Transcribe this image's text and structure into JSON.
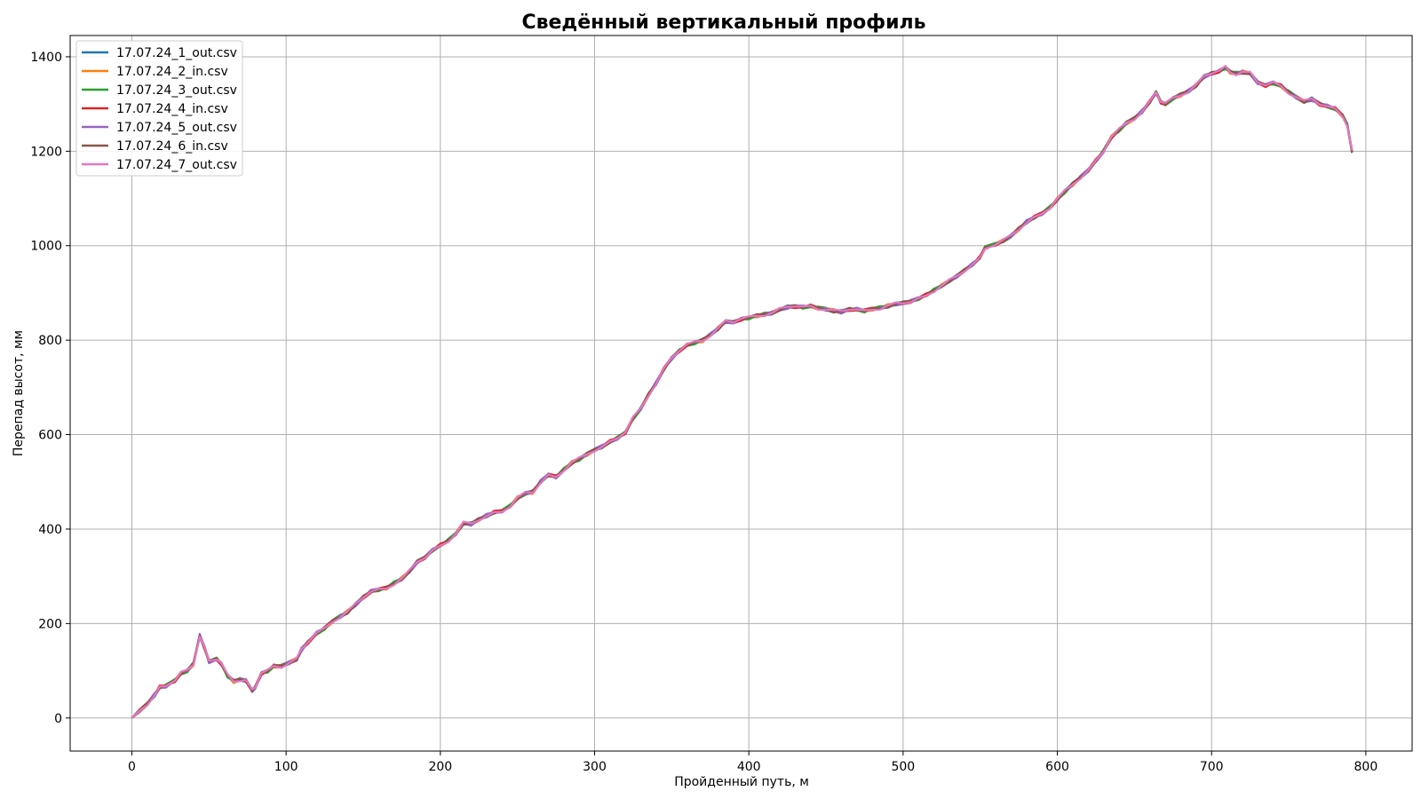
{
  "chart_data": {
    "type": "line",
    "title": "Сведённый вертикальный профиль",
    "xlabel": "Пройденный путь, м",
    "ylabel": "Перепад высот, мм",
    "xlim": [
      -40,
      830
    ],
    "ylim": [
      -70,
      1445
    ],
    "xticks": [
      0,
      100,
      200,
      300,
      400,
      500,
      600,
      700,
      800
    ],
    "yticks": [
      0,
      200,
      400,
      600,
      800,
      1000,
      1200,
      1400
    ],
    "grid": true,
    "legend_position": "upper-left",
    "profile": [
      [
        0,
        0
      ],
      [
        5,
        15
      ],
      [
        10,
        30
      ],
      [
        15,
        50
      ],
      [
        18,
        65
      ],
      [
        22,
        68
      ],
      [
        28,
        80
      ],
      [
        32,
        95
      ],
      [
        36,
        100
      ],
      [
        40,
        115
      ],
      [
        44,
        175
      ],
      [
        47,
        150
      ],
      [
        50,
        120
      ],
      [
        55,
        125
      ],
      [
        58,
        115
      ],
      [
        62,
        90
      ],
      [
        66,
        78
      ],
      [
        70,
        82
      ],
      [
        74,
        80
      ],
      [
        78,
        58
      ],
      [
        80,
        65
      ],
      [
        84,
        95
      ],
      [
        88,
        100
      ],
      [
        92,
        110
      ],
      [
        97,
        110
      ],
      [
        102,
        118
      ],
      [
        107,
        125
      ],
      [
        110,
        145
      ],
      [
        114,
        160
      ],
      [
        120,
        180
      ],
      [
        125,
        190
      ],
      [
        130,
        205
      ],
      [
        135,
        215
      ],
      [
        140,
        225
      ],
      [
        145,
        240
      ],
      [
        150,
        255
      ],
      [
        155,
        268
      ],
      [
        160,
        272
      ],
      [
        165,
        275
      ],
      [
        170,
        285
      ],
      [
        175,
        295
      ],
      [
        180,
        310
      ],
      [
        185,
        330
      ],
      [
        190,
        340
      ],
      [
        195,
        355
      ],
      [
        200,
        365
      ],
      [
        205,
        375
      ],
      [
        210,
        390
      ],
      [
        215,
        412
      ],
      [
        220,
        410
      ],
      [
        225,
        420
      ],
      [
        230,
        428
      ],
      [
        235,
        435
      ],
      [
        240,
        438
      ],
      [
        245,
        448
      ],
      [
        250,
        465
      ],
      [
        255,
        475
      ],
      [
        260,
        478
      ],
      [
        265,
        500
      ],
      [
        270,
        515
      ],
      [
        275,
        510
      ],
      [
        280,
        525
      ],
      [
        285,
        540
      ],
      [
        290,
        548
      ],
      [
        295,
        558
      ],
      [
        300,
        568
      ],
      [
        305,
        575
      ],
      [
        310,
        585
      ],
      [
        315,
        593
      ],
      [
        320,
        605
      ],
      [
        325,
        635
      ],
      [
        330,
        655
      ],
      [
        335,
        685
      ],
      [
        340,
        710
      ],
      [
        345,
        740
      ],
      [
        350,
        762
      ],
      [
        355,
        778
      ],
      [
        360,
        790
      ],
      [
        365,
        795
      ],
      [
        370,
        800
      ],
      [
        375,
        812
      ],
      [
        380,
        825
      ],
      [
        385,
        840
      ],
      [
        390,
        838
      ],
      [
        395,
        845
      ],
      [
        400,
        848
      ],
      [
        405,
        852
      ],
      [
        410,
        855
      ],
      [
        415,
        858
      ],
      [
        420,
        865
      ],
      [
        425,
        870
      ],
      [
        430,
        872
      ],
      [
        435,
        870
      ],
      [
        440,
        872
      ],
      [
        445,
        868
      ],
      [
        450,
        866
      ],
      [
        455,
        862
      ],
      [
        460,
        860
      ],
      [
        465,
        865
      ],
      [
        470,
        865
      ],
      [
        475,
        862
      ],
      [
        480,
        866
      ],
      [
        485,
        868
      ],
      [
        490,
        872
      ],
      [
        495,
        876
      ],
      [
        500,
        878
      ],
      [
        505,
        882
      ],
      [
        510,
        888
      ],
      [
        515,
        895
      ],
      [
        520,
        905
      ],
      [
        525,
        915
      ],
      [
        530,
        925
      ],
      [
        535,
        935
      ],
      [
        540,
        948
      ],
      [
        545,
        960
      ],
      [
        550,
        975
      ],
      [
        553,
        995
      ],
      [
        560,
        1003
      ],
      [
        565,
        1010
      ],
      [
        570,
        1020
      ],
      [
        575,
        1035
      ],
      [
        580,
        1050
      ],
      [
        585,
        1060
      ],
      [
        590,
        1068
      ],
      [
        595,
        1080
      ],
      [
        600,
        1098
      ],
      [
        605,
        1115
      ],
      [
        610,
        1130
      ],
      [
        615,
        1145
      ],
      [
        620,
        1160
      ],
      [
        625,
        1180
      ],
      [
        630,
        1200
      ],
      [
        635,
        1230
      ],
      [
        640,
        1245
      ],
      [
        645,
        1260
      ],
      [
        650,
        1270
      ],
      [
        655,
        1285
      ],
      [
        660,
        1305
      ],
      [
        664,
        1325
      ],
      [
        667,
        1305
      ],
      [
        670,
        1300
      ],
      [
        675,
        1312
      ],
      [
        680,
        1320
      ],
      [
        685,
        1328
      ],
      [
        690,
        1340
      ],
      [
        695,
        1358
      ],
      [
        700,
        1365
      ],
      [
        705,
        1370
      ],
      [
        709,
        1378
      ],
      [
        712,
        1368
      ],
      [
        716,
        1365
      ],
      [
        720,
        1368
      ],
      [
        725,
        1365
      ],
      [
        730,
        1345
      ],
      [
        735,
        1340
      ],
      [
        740,
        1345
      ],
      [
        745,
        1338
      ],
      [
        750,
        1325
      ],
      [
        755,
        1315
      ],
      [
        760,
        1305
      ],
      [
        765,
        1310
      ],
      [
        770,
        1300
      ],
      [
        775,
        1295
      ],
      [
        780,
        1290
      ],
      [
        785,
        1275
      ],
      [
        788,
        1255
      ],
      [
        791,
        1200
      ]
    ],
    "series": [
      {
        "name": "17.07.24_1_out.csv",
        "color": "#1f77b4"
      },
      {
        "name": "17.07.24_2_in.csv",
        "color": "#ff7f0e"
      },
      {
        "name": "17.07.24_3_out.csv",
        "color": "#2ca02c"
      },
      {
        "name": "17.07.24_4_in.csv",
        "color": "#d62728"
      },
      {
        "name": "17.07.24_5_out.csv",
        "color": "#9467bd"
      },
      {
        "name": "17.07.24_6_in.csv",
        "color": "#8c564b"
      },
      {
        "name": "17.07.24_7_out.csv",
        "color": "#e377c2"
      }
    ]
  }
}
